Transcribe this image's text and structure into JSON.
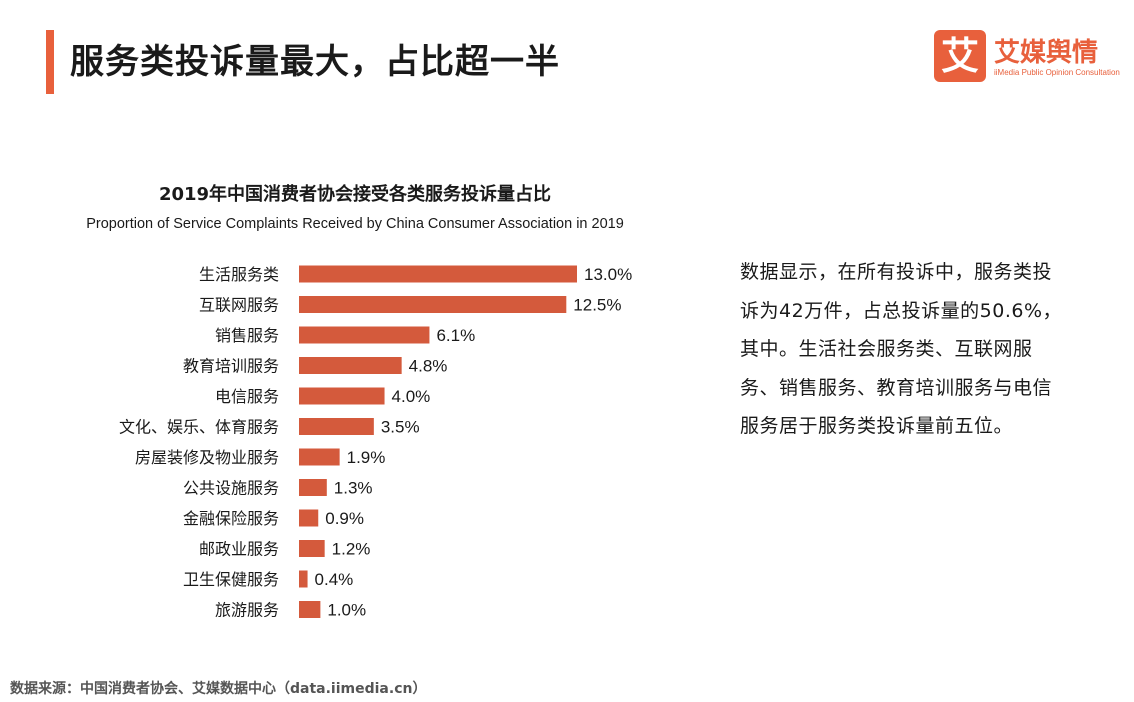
{
  "header": {
    "title": "服务类投诉量最大，占比超一半",
    "logo_cn": "艾媒舆情",
    "logo_en": "iiMedia Public Opinion Consultation",
    "logo_mark": "艾"
  },
  "colors": {
    "accent": "#e8603c",
    "bar": "#d45a3c"
  },
  "chart_data": {
    "type": "bar",
    "orientation": "horizontal",
    "title": "2019年中国消费者协会接受各类服务投诉量占比",
    "subtitle": "Proportion of Service Complaints Received by China Consumer Association in 2019",
    "categories": [
      "生活服务类",
      "互联网服务",
      "销售服务",
      "教育培训服务",
      "电信服务",
      "文化、娱乐、体育服务",
      "房屋装修及物业服务",
      "公共设施服务",
      "金融保险服务",
      "邮政业服务",
      "卫生保健服务",
      "旅游服务"
    ],
    "values": [
      13.0,
      12.5,
      6.1,
      4.8,
      4.0,
      3.5,
      1.9,
      1.3,
      0.9,
      1.2,
      0.4,
      1.0
    ],
    "value_labels": [
      "13.0%",
      "12.5%",
      "6.1%",
      "4.8%",
      "4.0%",
      "3.5%",
      "1.9%",
      "1.3%",
      "0.9%",
      "1.2%",
      "0.4%",
      "1.0%"
    ],
    "unit": "%",
    "xlim": [
      0,
      13.0
    ],
    "grid": false,
    "legend": "none"
  },
  "side_text": "数据显示，在所有投诉中，服务类投诉为42万件，占总投诉量的50.6%，其中。生活社会服务类、互联网服务、销售服务、教育培训服务与电信服务居于服务类投诉量前五位。",
  "footer": {
    "source": "数据来源：中国消费者协会、艾媒数据中心（data.iimedia.cn）"
  }
}
